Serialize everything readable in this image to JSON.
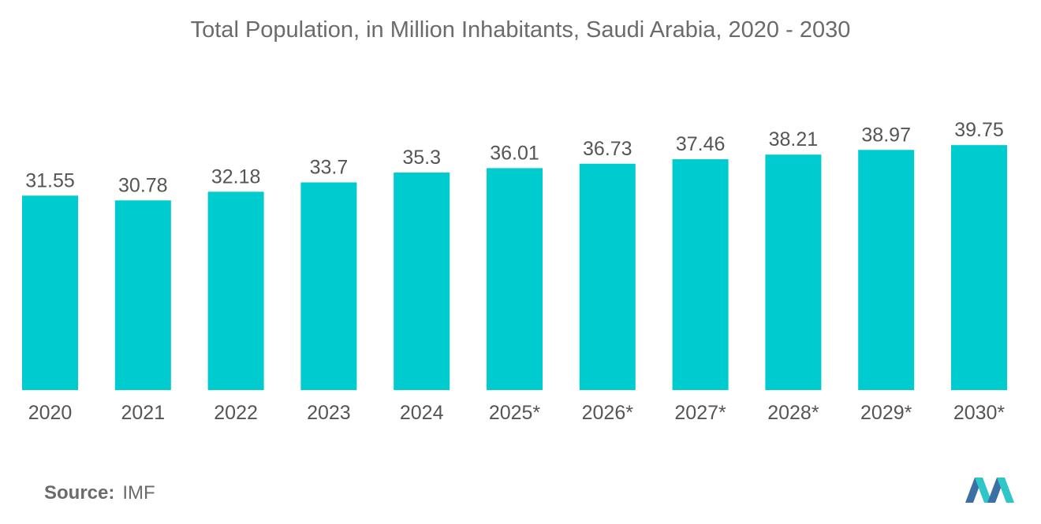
{
  "chart_data": {
    "type": "bar",
    "title": "Total Population, in Million Inhabitants, Saudi Arabia, 2020 - 2030",
    "categories": [
      "2020",
      "2021",
      "2022",
      "2023",
      "2024",
      "2025*",
      "2026*",
      "2027*",
      "2028*",
      "2029*",
      "2030*"
    ],
    "values": [
      31.55,
      30.78,
      32.18,
      33.7,
      35.3,
      36.01,
      36.73,
      37.46,
      38.21,
      38.97,
      39.75
    ],
    "value_labels": [
      "31.55",
      "30.78",
      "32.18",
      "33.7",
      "35.3",
      "36.01",
      "36.73",
      "37.46",
      "38.21",
      "38.97",
      "39.75"
    ],
    "xlabel": "",
    "ylabel": "",
    "ylim": [
      0,
      40
    ],
    "grid": false,
    "bar_color": "#00cccf"
  },
  "source": {
    "label": "Source:",
    "value": "IMF"
  },
  "colors": {
    "text": "#6b6b6b",
    "logo_dark": "#3b6fa6",
    "logo_light": "#2fc6c9"
  }
}
